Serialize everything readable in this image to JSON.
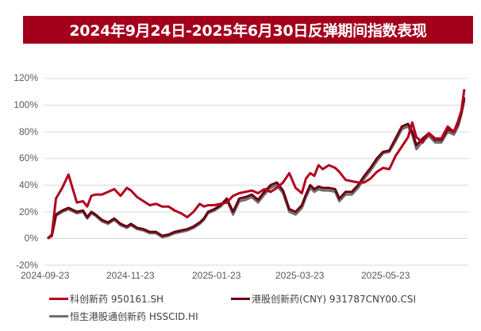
{
  "title": "2024年9月24日-2025年6月30日反弹期间指数表现",
  "colors": {
    "title_bg": "#a3001b",
    "grid": "#d9d9d9"
  },
  "chart_data": {
    "type": "line",
    "title": "2024年9月24日-2025年6月30日反弹期间指数表现",
    "xlabel": "",
    "ylabel": "",
    "ylim": [
      -20,
      120
    ],
    "yticks": [
      "120%",
      "100%",
      "80%",
      "60%",
      "40%",
      "20%",
      "0%",
      "-20%"
    ],
    "xticks": [
      "2024-09-23",
      "2024-11-23",
      "2025-01-23",
      "2025-03-23",
      "2025-05-23"
    ],
    "grid": true,
    "legend_position": "bottom",
    "x_progress": [
      0,
      0.01,
      0.02,
      0.035,
      0.05,
      0.07,
      0.085,
      0.095,
      0.105,
      0.115,
      0.13,
      0.145,
      0.16,
      0.175,
      0.19,
      0.2,
      0.215,
      0.23,
      0.245,
      0.26,
      0.275,
      0.29,
      0.305,
      0.32,
      0.335,
      0.35,
      0.365,
      0.375,
      0.385,
      0.4,
      0.415,
      0.43,
      0.445,
      0.46,
      0.475,
      0.49,
      0.505,
      0.52,
      0.535,
      0.55,
      0.565,
      0.58,
      0.595,
      0.61,
      0.62,
      0.63,
      0.64,
      0.65,
      0.66,
      0.675,
      0.69,
      0.7,
      0.715,
      0.73,
      0.745,
      0.76,
      0.775,
      0.79,
      0.805,
      0.82,
      0.835,
      0.85,
      0.865,
      0.875,
      0.885,
      0.9,
      0.915,
      0.93,
      0.945,
      0.96,
      0.975,
      0.985,
      0.993,
      1.0
    ],
    "series": [
      {
        "name": "科创新药 950161.SH",
        "color": "#b2001e",
        "values": [
          0,
          3,
          30,
          38,
          48,
          27,
          28,
          24,
          32,
          33,
          33,
          35,
          37,
          32,
          38,
          36,
          31,
          28,
          25,
          26,
          24,
          24,
          21,
          19,
          16,
          20,
          26,
          24,
          25,
          25,
          26,
          27,
          32,
          34,
          35,
          36,
          34,
          37,
          35,
          38,
          42,
          49,
          38,
          34,
          45,
          49,
          47,
          55,
          52,
          55,
          53,
          50,
          44,
          43,
          42,
          42,
          45,
          50,
          53,
          52,
          62,
          69,
          76,
          87,
          76,
          72,
          79,
          75,
          75,
          84,
          80,
          88,
          96,
          112
        ]
      },
      {
        "name": "港股创新药(CNY) 931787CNY00.CSI",
        "color": "#6b0010",
        "values": [
          0,
          2,
          18,
          21,
          23,
          20,
          21,
          16,
          20,
          18,
          14,
          12,
          15,
          11,
          9,
          11,
          8,
          7,
          5,
          5,
          2,
          3,
          5,
          6,
          7,
          9,
          12,
          15,
          20,
          22,
          25,
          30,
          20,
          30,
          31,
          33,
          29,
          35,
          40,
          42,
          36,
          22,
          20,
          25,
          33,
          40,
          37,
          39,
          38,
          38,
          37,
          30,
          35,
          35,
          40,
          47,
          53,
          60,
          65,
          66,
          75,
          84,
          86,
          80,
          70,
          75,
          79,
          74,
          74,
          82,
          80,
          86,
          95,
          106
        ]
      },
      {
        "name": "恒生港股通创新药 HSSCID.HI",
        "color": "#6e6e6e",
        "values": [
          0,
          2,
          17,
          20,
          22,
          19,
          20,
          15,
          19,
          17,
          13,
          11,
          14,
          10,
          8,
          10,
          7,
          6,
          4,
          4,
          1,
          2,
          4,
          5,
          6,
          8,
          11,
          14,
          19,
          21,
          24,
          29,
          18,
          28,
          29,
          31,
          27,
          33,
          38,
          40,
          34,
          20,
          18,
          23,
          31,
          38,
          35,
          37,
          36,
          36,
          35,
          28,
          33,
          33,
          38,
          45,
          51,
          58,
          64,
          65,
          73,
          82,
          84,
          78,
          67,
          73,
          77,
          72,
          72,
          80,
          78,
          84,
          93,
          104
        ]
      }
    ]
  },
  "legend": [
    {
      "label": "科创新药 950161.SH",
      "color": "#b2001e"
    },
    {
      "label": "港股创新药(CNY) 931787CNY00.CSI",
      "color": "#6b0010"
    },
    {
      "label": "恒生港股通创新药 HSSCID.HI",
      "color": "#6e6e6e"
    }
  ]
}
